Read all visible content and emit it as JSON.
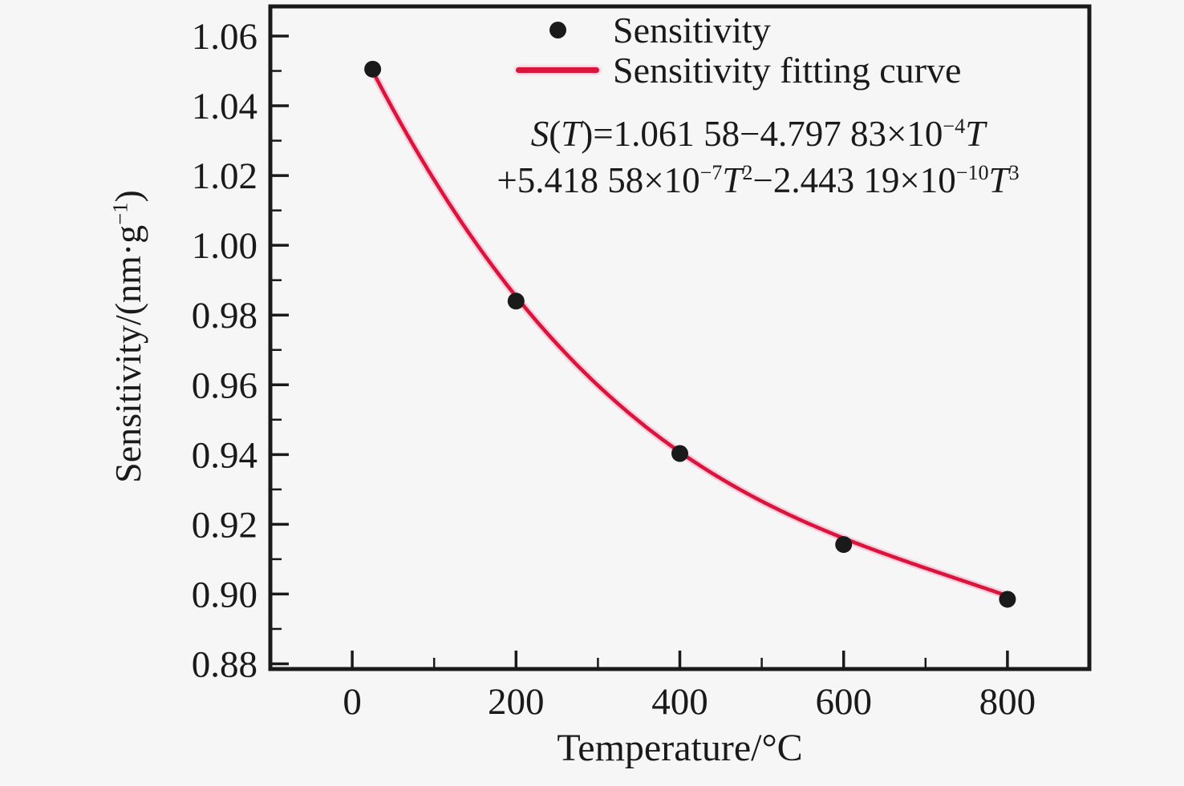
{
  "chart_data": {
    "type": "scatter",
    "title": "",
    "xlabel": "Temperature/°C",
    "ylabel": "Sensitivity/(nm·g⁻¹)",
    "xlim": [
      -100,
      900
    ],
    "ylim": [
      0.8785,
      1.0685
    ],
    "grid": false,
    "legend_position": "upper center inside",
    "x_major_ticks": [
      {
        "v": 0,
        "label": "0"
      },
      {
        "v": 200,
        "label": "200"
      },
      {
        "v": 400,
        "label": "400"
      },
      {
        "v": 600,
        "label": "600"
      },
      {
        "v": 800,
        "label": "800"
      }
    ],
    "x_minor_ticks": [
      100,
      300,
      500,
      700
    ],
    "y_major_ticks": [
      {
        "v": 1.06,
        "label": "1.06"
      },
      {
        "v": 1.04,
        "label": "1.04"
      },
      {
        "v": 1.02,
        "label": "1.02"
      },
      {
        "v": 1.0,
        "label": "1.00"
      },
      {
        "v": 0.98,
        "label": "0.98"
      },
      {
        "v": 0.96,
        "label": "0.96"
      },
      {
        "v": 0.94,
        "label": "0.94"
      },
      {
        "v": 0.92,
        "label": "0.92"
      },
      {
        "v": 0.9,
        "label": "0.90"
      },
      {
        "v": 0.88,
        "label": "0.88"
      }
    ],
    "y_minor_ticks": [
      1.05,
      1.03,
      1.01,
      0.99,
      0.97,
      0.95,
      0.93,
      0.91,
      0.89
    ],
    "series": [
      {
        "name": "Sensitivity",
        "kind": "scatter",
        "marker": "circle",
        "color": "#1a1a1a",
        "x": [
          25,
          200,
          400,
          600,
          800
        ],
        "y": [
          1.0505,
          0.984,
          0.9403,
          0.9142,
          0.8985
        ]
      },
      {
        "name": "Sensitivity fitting curve",
        "kind": "line",
        "color": "#dc143c",
        "glow_color": "#f4a7c3",
        "fit_equation": "S(T)=1.061 58−4.797 83×10⁻⁴T+5.418 58×10⁻⁷T²−2.443 19×10⁻¹⁰T³",
        "coefficients": [
          1.06158,
          -0.000479783,
          5.41858e-07,
          -2.44319e-10
        ],
        "x_range": [
          25,
          800
        ]
      }
    ],
    "annotation": "S(T)=1.061 58−4.797 83×10⁻⁴T+5.418 58×10⁻⁷T²−2.443 19×10⁻¹⁰T³"
  },
  "legend": {
    "items": [
      {
        "label": "Sensitivity",
        "marker": "dot",
        "color": "#1a1a1a"
      },
      {
        "label": "Sensitivity fitting curve",
        "marker": "line",
        "color": "#dc143c"
      }
    ]
  },
  "equation": {
    "line1": {
      "s": "S",
      "p1": "(",
      "t1": "T",
      "p2": ")=1.061 58−4.797 83×10",
      "e1": "−4",
      "t2": "T"
    },
    "line2": {
      "p1": "+5.418 58×10",
      "e1": "−7",
      "t1": "T",
      "s1": "2",
      "p2": "−2.443 19×10",
      "e2": "−10",
      "t2": "T",
      "s2": "3"
    }
  },
  "axis": {
    "xlabel": "Temperature/°C",
    "ylabel_pre": "Sensitivity/(nm·g",
    "ylabel_sup": "−1",
    "ylabel_post": ")"
  },
  "style": {
    "background": "#f6f6f6",
    "frame_color": "#1a1a1a",
    "text_color": "#1a1a1a"
  }
}
